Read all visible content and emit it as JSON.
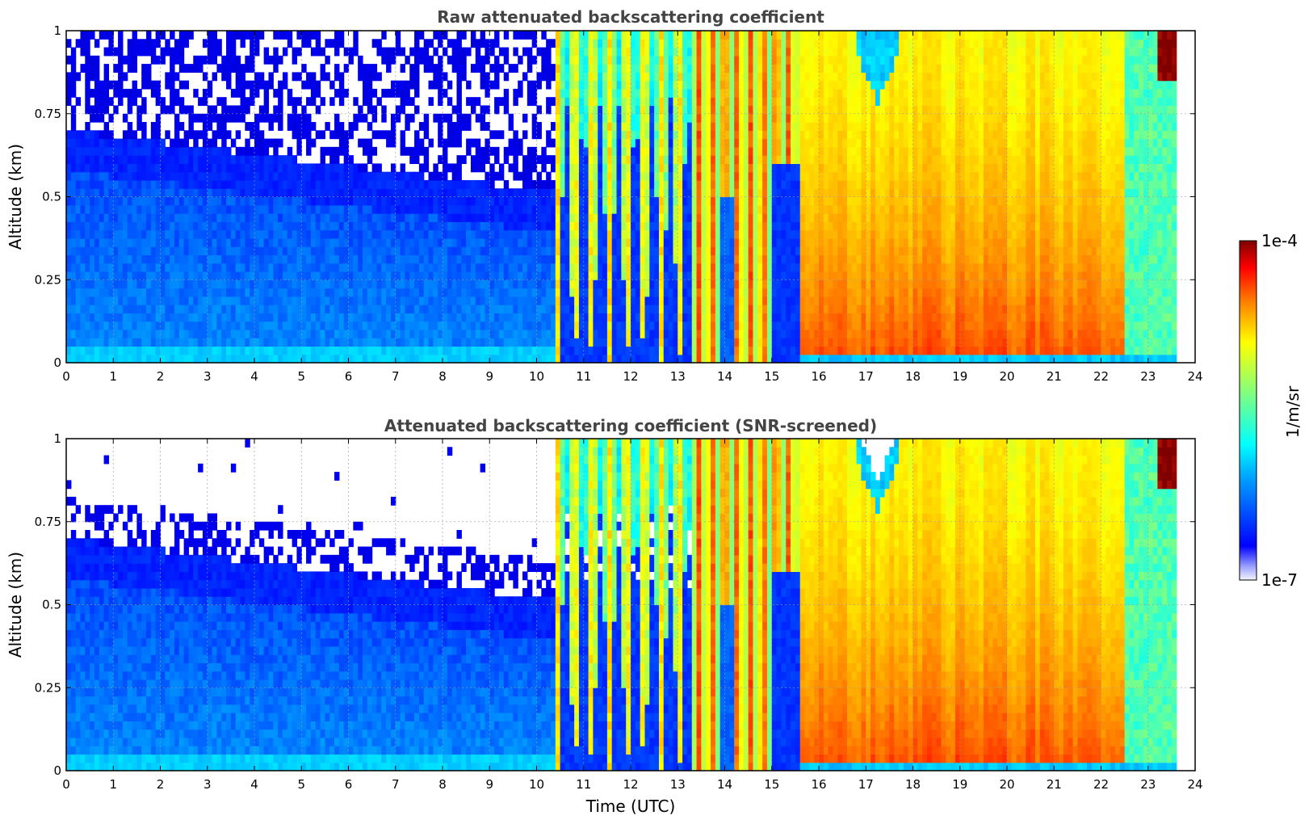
{
  "chart_data": [
    {
      "type": "heatmap",
      "title": "Raw attenuated backscattering coefficient",
      "xlabel": "",
      "ylabel": "Altitude (km)",
      "xlim": [
        0,
        24
      ],
      "ylim": [
        0,
        1
      ],
      "xticks": [
        "0",
        "1",
        "2",
        "3",
        "4",
        "5",
        "6",
        "7",
        "8",
        "9",
        "10",
        "11",
        "12",
        "13",
        "14",
        "15",
        "16",
        "17",
        "18",
        "19",
        "20",
        "21",
        "22",
        "23",
        "24"
      ],
      "yticks": [
        "0",
        "0.25",
        "0.5",
        "0.75",
        "1"
      ],
      "grid": true,
      "colormap": "jet",
      "data_end_hour": 23.6,
      "description_of_field": [
        {
          "x_range": [
            0,
            10.4
          ],
          "regime": "low backscatter, aerosol layer below ~0.7 km, noisy above"
        },
        {
          "x_range": [
            10.4,
            13.3
          ],
          "regime": "intermittent cloud/precipitation streaks"
        },
        {
          "x_range": [
            13.3,
            15.6
          ],
          "regime": "strong backscatter with breaks"
        },
        {
          "x_range": [
            15.6,
            23.6
          ],
          "regime": "high backscatter throughout column"
        }
      ]
    },
    {
      "type": "heatmap",
      "title": "Attenuated backscattering coefficient (SNR-screened)",
      "xlabel": "Time (UTC)",
      "ylabel": "Altitude (km)",
      "xlim": [
        0,
        24
      ],
      "ylim": [
        0,
        1
      ],
      "xticks": [
        "0",
        "1",
        "2",
        "3",
        "4",
        "5",
        "6",
        "7",
        "8",
        "9",
        "10",
        "11",
        "12",
        "13",
        "14",
        "15",
        "16",
        "17",
        "18",
        "19",
        "20",
        "21",
        "22",
        "23",
        "24"
      ],
      "yticks": [
        "0",
        "0.25",
        "0.5",
        "0.75",
        "1"
      ],
      "grid": true,
      "colormap": "jet",
      "data_end_hour": 23.6,
      "screened": true
    }
  ],
  "colorbar": {
    "max_label": "1e-4",
    "min_label": "1e-7",
    "unit_label": "1/m/sr",
    "min_value": 1e-07,
    "max_value": 0.0001,
    "scale": "log"
  }
}
